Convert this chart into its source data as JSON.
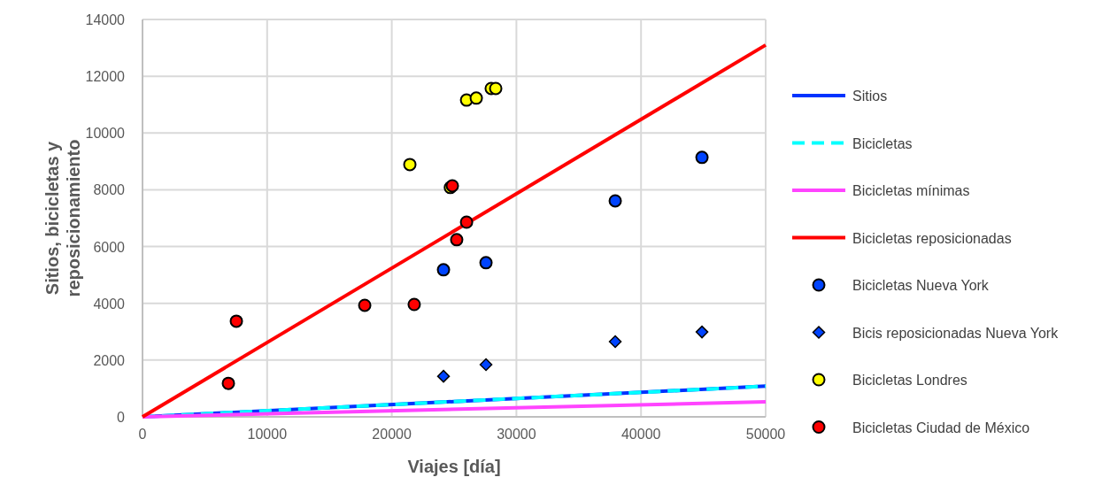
{
  "chart_data": {
    "type": "scatter",
    "xlabel": "Viajes [día]",
    "ylabel": "Sitios, bicicletas y reposicionamiento",
    "xlim": [
      0,
      50000
    ],
    "ylim": [
      0,
      14000
    ],
    "xticks": [
      0,
      10000,
      20000,
      30000,
      40000,
      50000
    ],
    "yticks": [
      0,
      2000,
      4000,
      6000,
      8000,
      10000,
      12000,
      14000
    ],
    "grid": true,
    "legend": "right",
    "series": [
      {
        "name": "Sitios",
        "type": "line",
        "color": "#0033ff",
        "x": [
          0,
          50000
        ],
        "values": [
          0,
          1080
        ],
        "line_style": "solid",
        "marker": "none"
      },
      {
        "name": "Bicicletas",
        "type": "line",
        "color": "#00ffff",
        "x": [
          0,
          50000
        ],
        "values": [
          0,
          1080
        ],
        "line_style": "dashed",
        "marker": "none"
      },
      {
        "name": "Bicicletas mínimas",
        "type": "line",
        "color": "#ff44ff",
        "x": [
          0,
          50000
        ],
        "values": [
          0,
          530
        ],
        "line_style": "solid",
        "marker": "none"
      },
      {
        "name": "Bicicletas reposicionadas",
        "type": "line",
        "color": "#ff0000",
        "x": [
          0,
          50000
        ],
        "values": [
          0,
          13100
        ],
        "line_style": "solid",
        "marker": "none"
      },
      {
        "name": "Bicicletas Nueva York",
        "color": "#0044ff",
        "marker": "circle",
        "x": [
          24150,
          27560,
          37930,
          44890
        ],
        "values": [
          5180,
          5430,
          7610,
          9140
        ]
      },
      {
        "name": "Bicis reposicionadas Nueva York",
        "color": "#0044ff",
        "marker": "diamond",
        "x": [
          24150,
          27560,
          37930,
          44890
        ],
        "values": [
          1430,
          1840,
          2650,
          2990
        ]
      },
      {
        "name": "Bicicletas Londres",
        "color": "#ffff00",
        "marker": "circle",
        "x": [
          21450,
          24700,
          26000,
          26780,
          27980,
          28340
        ],
        "values": [
          8890,
          8080,
          11160,
          11230,
          11570,
          11570
        ]
      },
      {
        "name": "Bicicletas Ciudad de México",
        "color": "#ff0000",
        "marker": "circle",
        "x": [
          6890,
          7530,
          17830,
          21800,
          24860,
          25210,
          26000
        ],
        "values": [
          1180,
          3370,
          3930,
          3960,
          8140,
          6240,
          6860
        ]
      }
    ]
  }
}
